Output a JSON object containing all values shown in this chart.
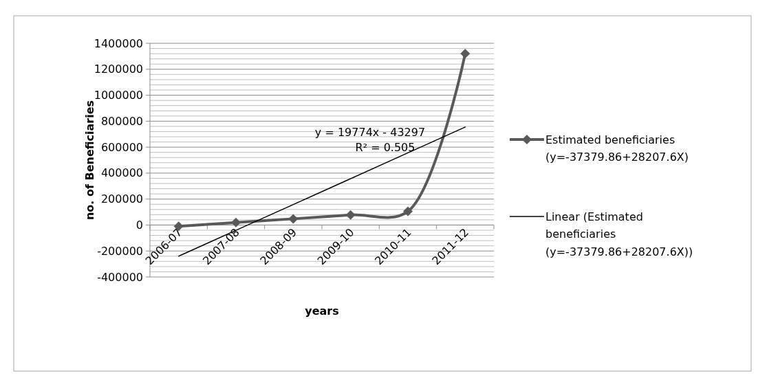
{
  "chart_data": {
    "type": "line",
    "xlabel": "years",
    "ylabel": "no. of Beneficiaries",
    "categories": [
      "2006-07",
      "2007-08",
      "2008-09",
      "2009-10",
      "2010-11",
      "2011-12"
    ],
    "series": [
      {
        "name": "Estimated beneficiaries (y=-37379.86+28207.6X)",
        "color": "#595959",
        "values": [
          -10000,
          20000,
          48000,
          78000,
          105000,
          1320000
        ],
        "marker": "diamond"
      },
      {
        "name": "Linear (Estimated beneficiaries   (y=-37379.86+28207.6X))",
        "color": "#000000",
        "type": "line",
        "values": [
          -240000,
          -41000,
          158000,
          357000,
          556000,
          755000
        ],
        "marker": "none"
      }
    ],
    "ylim": [
      -400000,
      1400000
    ],
    "yticks": [
      -400000,
      {
        "value": -360000,
        "label": null
      },
      {
        "value": -320000,
        "label": null
      },
      {
        "value": -280000,
        "label": null
      },
      {
        "value": -240000,
        "label": null
      },
      -200000,
      {
        "value": -160000,
        "label": null
      },
      {
        "value": -120000,
        "label": null
      },
      {
        "value": -80000,
        "label": null
      },
      {
        "value": -40000,
        "label": null
      },
      0,
      {
        "value": 40000,
        "label": null
      },
      {
        "value": 80000,
        "label": null
      },
      {
        "value": 120000,
        "label": null
      },
      {
        "value": 160000,
        "label": null
      },
      200000,
      {
        "value": 240000,
        "label": null
      },
      {
        "value": 280000,
        "label": null
      },
      {
        "value": 320000,
        "label": null
      },
      {
        "value": 360000,
        "label": null
      },
      400000,
      {
        "value": 440000,
        "label": null
      },
      {
        "value": 480000,
        "label": null
      },
      {
        "value": 520000,
        "label": null
      },
      {
        "value": 560000,
        "label": null
      },
      600000,
      {
        "value": 640000,
        "label": null
      },
      {
        "value": 680000,
        "label": null
      },
      {
        "value": 720000,
        "label": null
      },
      {
        "value": 760000,
        "label": null
      },
      800000,
      {
        "value": 840000,
        "label": null
      },
      {
        "value": 880000,
        "label": null
      },
      {
        "value": 920000,
        "label": null
      },
      {
        "value": 960000,
        "label": null
      },
      1000000,
      {
        "value": 1040000,
        "label": null
      },
      {
        "value": 1080000,
        "label": null
      },
      {
        "value": 1120000,
        "label": null
      },
      {
        "value": 1160000,
        "label": null
      },
      1200000,
      {
        "value": 1240000,
        "label": null
      },
      {
        "value": 1280000,
        "label": null
      },
      {
        "value": 1320000,
        "label": null
      },
      {
        "value": 1360000,
        "label": null
      },
      1400000
    ],
    "grid": "y",
    "legend": "right",
    "annotations": [
      "y = 19774x - 43297",
      "R² = 0.505"
    ]
  }
}
